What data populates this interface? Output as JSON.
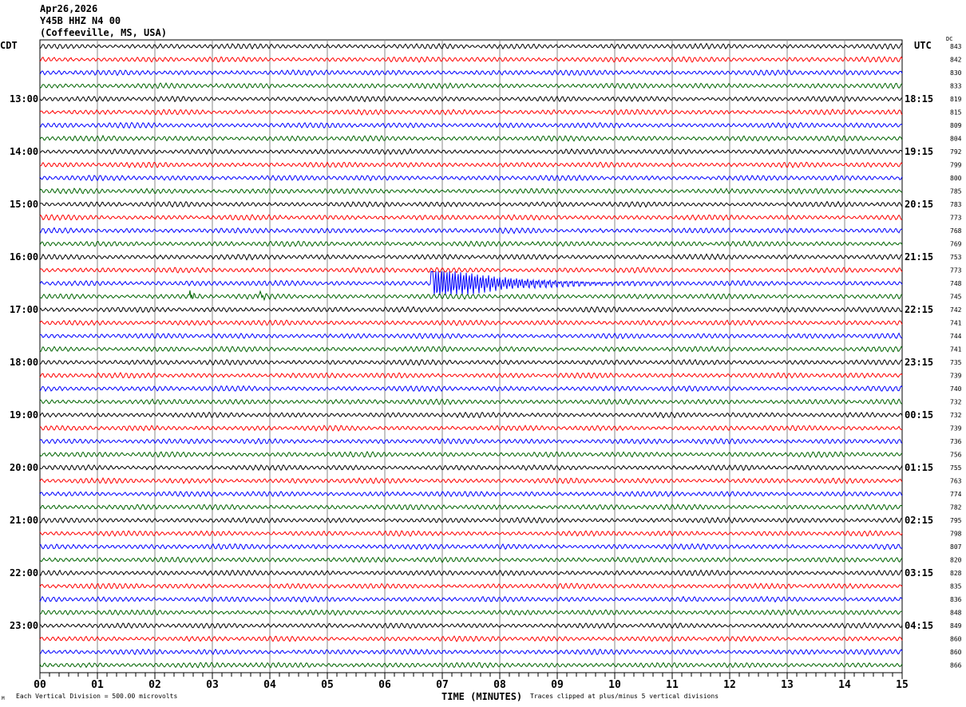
{
  "header": {
    "date": "Apr26,2026",
    "station": "Y45B HHZ N4 00",
    "location": "(Coffeeville, MS, USA)"
  },
  "left_tz": "CDT",
  "right_tz": "UTC",
  "dc_label": "DC",
  "footer": {
    "scale": "Each Vertical Division =  500.00 microvolts",
    "xlabel": "TIME (MINUTES)",
    "clip_note": "Traces clipped at plus/minus 5 vertical divisions",
    "corner_mark": "M"
  },
  "chart_data": {
    "type": "line",
    "subtype": "helicorder",
    "xlabel": "TIME (MINUTES)",
    "xlim": [
      0,
      15
    ],
    "x_ticks": [
      "00",
      "01",
      "02",
      "03",
      "04",
      "05",
      "06",
      "07",
      "08",
      "09",
      "10",
      "11",
      "12",
      "13",
      "14",
      "15"
    ],
    "rows_count": 48,
    "minutes_per_row": 15,
    "trace_colors": [
      "#000000",
      "#ff0000",
      "#0000ff",
      "#006400"
    ],
    "left_hour_labels": [
      {
        "row": 4,
        "text": "13:00"
      },
      {
        "row": 8,
        "text": "14:00"
      },
      {
        "row": 12,
        "text": "15:00"
      },
      {
        "row": 16,
        "text": "16:00"
      },
      {
        "row": 20,
        "text": "17:00"
      },
      {
        "row": 24,
        "text": "18:00"
      },
      {
        "row": 28,
        "text": "19:00"
      },
      {
        "row": 32,
        "text": "20:00"
      },
      {
        "row": 36,
        "text": "21:00"
      },
      {
        "row": 40,
        "text": "22:00"
      },
      {
        "row": 44,
        "text": "23:00"
      }
    ],
    "right_hour_labels": [
      {
        "row": 4,
        "text": "18:15"
      },
      {
        "row": 8,
        "text": "19:15"
      },
      {
        "row": 12,
        "text": "20:15"
      },
      {
        "row": 16,
        "text": "21:15"
      },
      {
        "row": 20,
        "text": "22:15"
      },
      {
        "row": 24,
        "text": "23:15"
      },
      {
        "row": 28,
        "text": "00:15"
      },
      {
        "row": 32,
        "text": "01:15"
      },
      {
        "row": 36,
        "text": "02:15"
      },
      {
        "row": 40,
        "text": "03:15"
      },
      {
        "row": 44,
        "text": "04:15"
      }
    ],
    "dc_offsets": [
      "843",
      "842",
      "830",
      "833",
      "819",
      "815",
      "809",
      "804",
      "792",
      "799",
      "800",
      "785",
      "783",
      "773",
      "768",
      "769",
      "753",
      "773",
      "748",
      "745",
      "742",
      "741",
      "744",
      "741",
      "735",
      "739",
      "740",
      "732",
      "732",
      "739",
      "736",
      "756",
      "755",
      "763",
      "774",
      "782",
      "795",
      "798",
      "807",
      "820",
      "828",
      "835",
      "836",
      "848",
      "849",
      "860",
      "860",
      "866"
    ],
    "events": [
      {
        "row": 18,
        "minute": 6.8,
        "amplitude": 1.3,
        "duration_min": 4.5
      },
      {
        "row": 19,
        "minute": 2.6,
        "amplitude": 0.6,
        "duration_min": 0.2
      },
      {
        "row": 19,
        "minute": 3.8,
        "amplitude": 0.5,
        "duration_min": 0.3
      }
    ]
  }
}
